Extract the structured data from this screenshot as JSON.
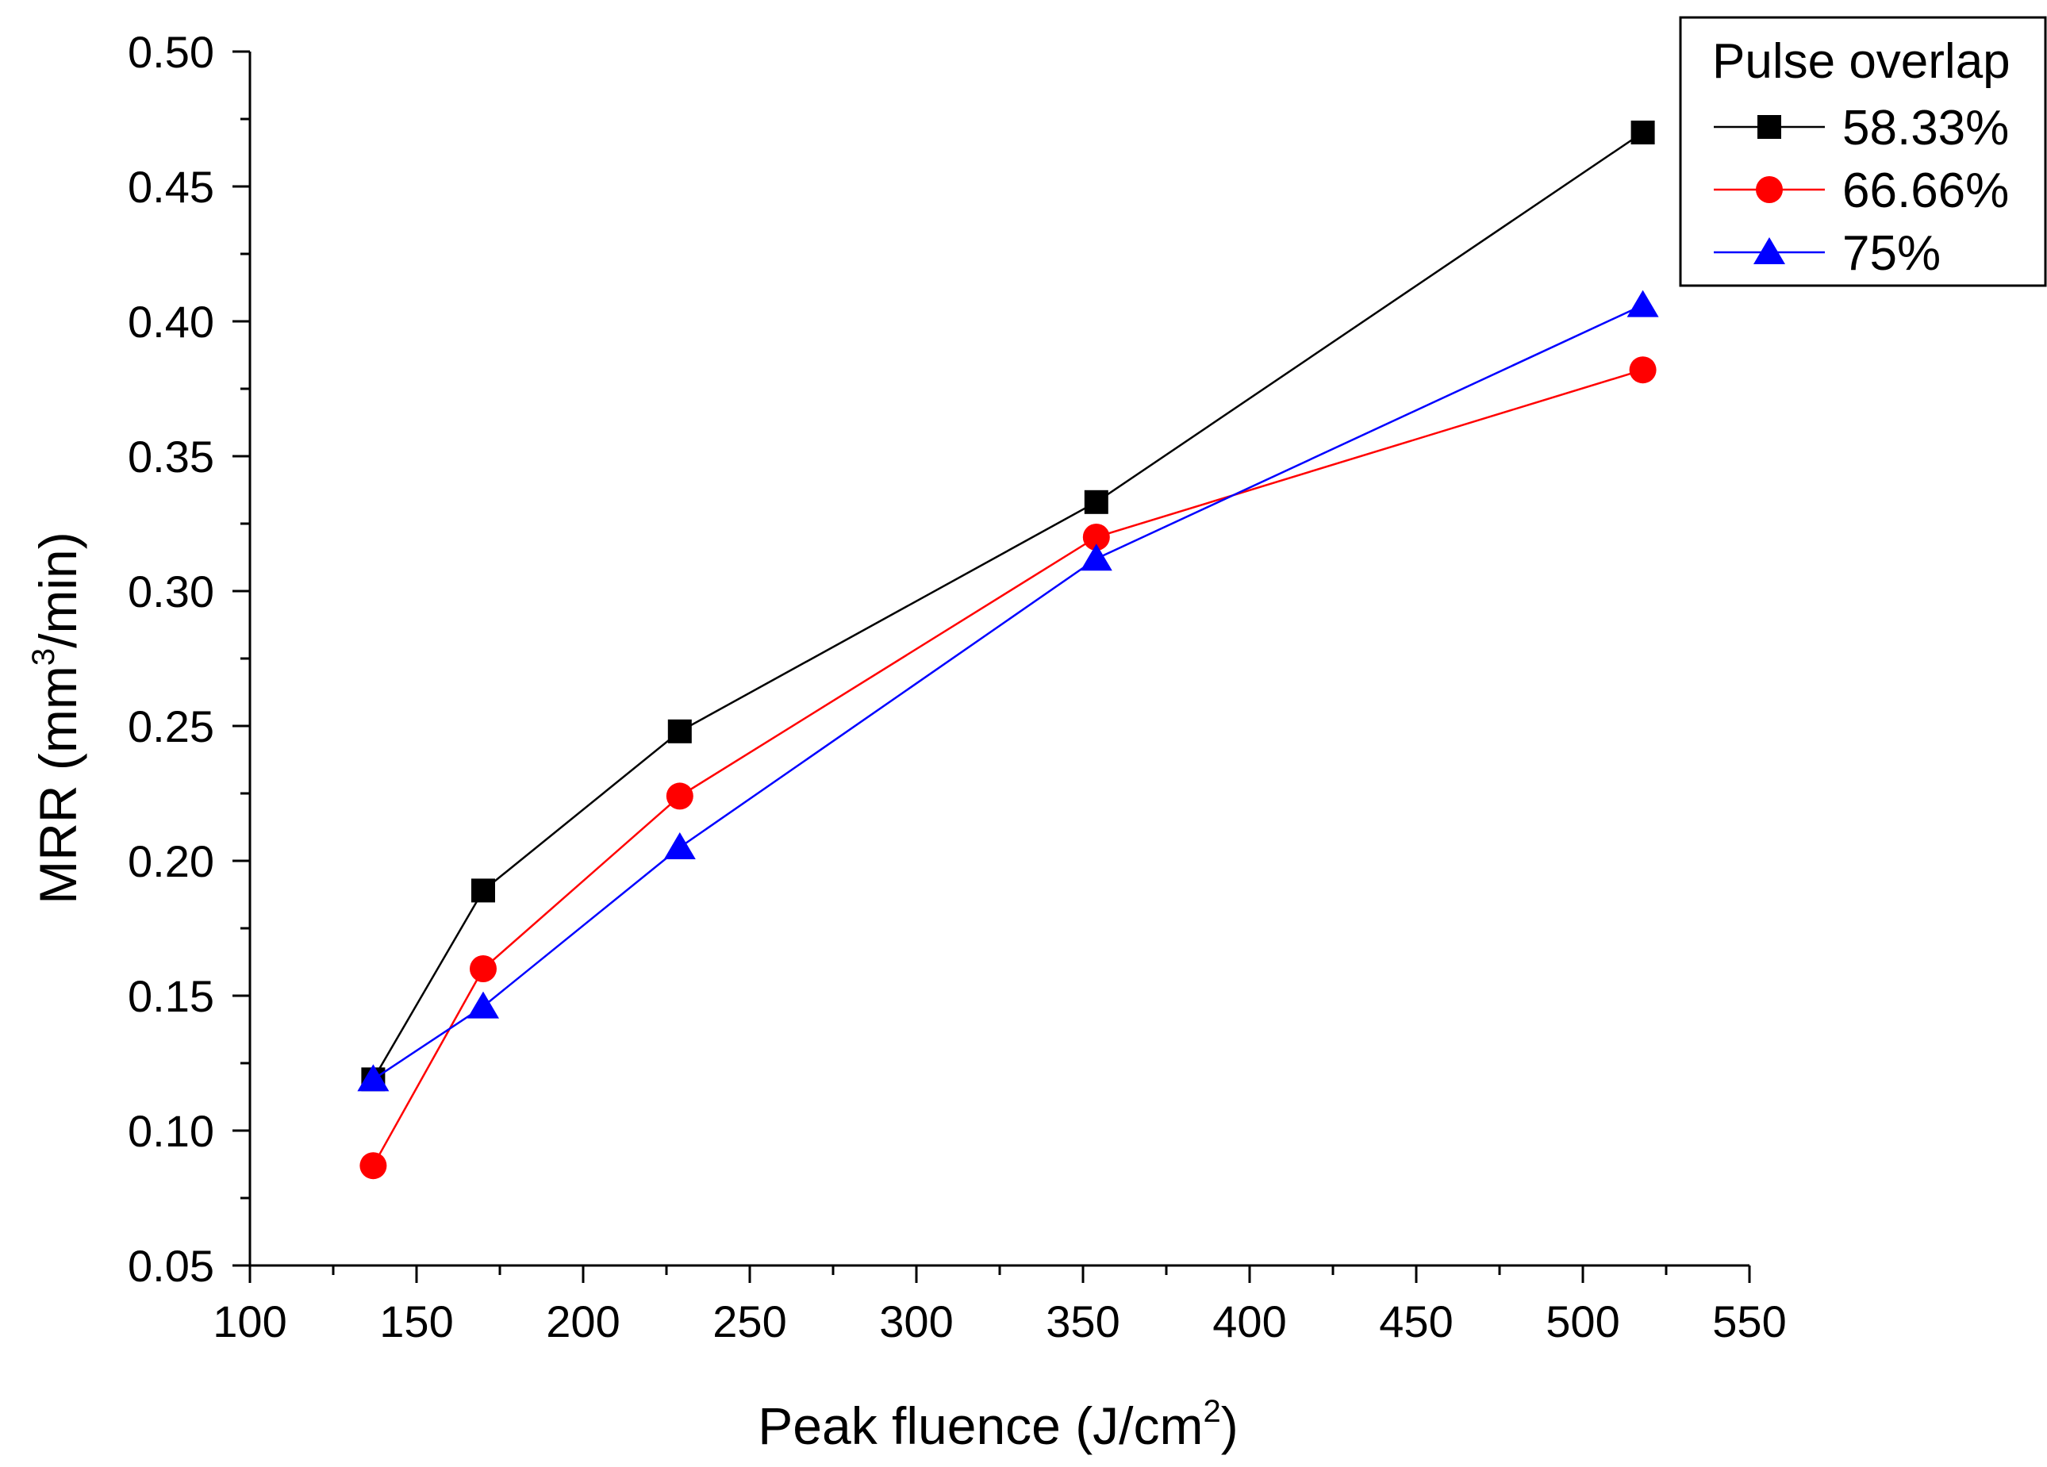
{
  "chart_data": {
    "type": "line",
    "title": "",
    "xlabel": "Peak fluence (J/cm",
    "xlabel_sup": "2",
    "xlabel_end": ")",
    "ylabel": "MRR (mm",
    "ylabel_sup": "3",
    "ylabel_end": "/min)",
    "xlim": [
      100,
      550
    ],
    "ylim": [
      0.05,
      0.5
    ],
    "xticks": [
      "100",
      "150",
      "200",
      "250",
      "300",
      "350",
      "400",
      "450",
      "500",
      "550"
    ],
    "yticks": [
      "0.05",
      "0.10",
      "0.15",
      "0.20",
      "0.25",
      "0.30",
      "0.35",
      "0.40",
      "0.45",
      "0.50"
    ],
    "grid": false,
    "legend": {
      "title": "Pulse overlap",
      "position": "top-right"
    },
    "x": [
      137,
      170,
      229,
      354,
      518
    ],
    "series": [
      {
        "name": "58.33%",
        "color": "#000000",
        "marker": "square",
        "values": [
          0.119,
          0.189,
          0.248,
          0.333,
          0.47
        ]
      },
      {
        "name": "66.66%",
        "color": "#ff0000",
        "marker": "circle",
        "values": [
          0.087,
          0.16,
          0.224,
          0.32,
          0.382
        ]
      },
      {
        "name": "75%",
        "color": "#0000ff",
        "marker": "triangle",
        "values": [
          0.119,
          0.146,
          0.205,
          0.312,
          0.406
        ]
      }
    ]
  }
}
